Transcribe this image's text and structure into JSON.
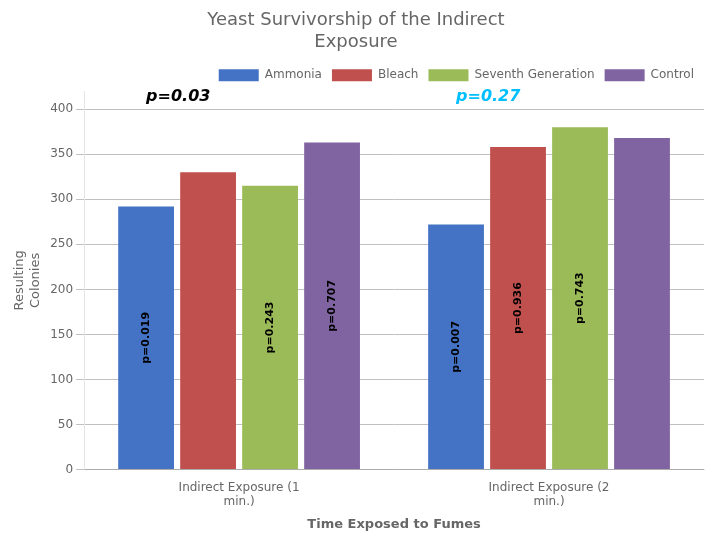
{
  "chart_data": {
    "type": "bar",
    "title": "Yeast Survivorship of the Indirect\nExposure",
    "xlabel": "Time Exposed to Fumes",
    "ylabel": "Resulting\nColonies",
    "categories": [
      "Indirect Exposure (1\nmin.)",
      "Indirect Exposure (2\nmin.)"
    ],
    "series": [
      {
        "name": "Ammonia",
        "color": "#4472C4",
        "values": [
          292,
          272
        ],
        "bar_labels": [
          "p=0.019",
          "p=0.007"
        ]
      },
      {
        "name": "Bleach",
        "color": "#C0504D",
        "values": [
          330,
          358
        ],
        "bar_labels": [
          null,
          "p=0.936"
        ]
      },
      {
        "name": "Seventh Generation",
        "color": "#9BBB59",
        "values": [
          315,
          380
        ],
        "bar_labels": [
          "p=0.243",
          "p=0.743"
        ]
      },
      {
        "name": "Control",
        "color": "#8064A2",
        "values": [
          363,
          368
        ],
        "bar_labels": [
          "p=0.707",
          null
        ]
      }
    ],
    "annotations": [
      {
        "text": "p=0.03",
        "color": "black",
        "category": "Indirect Exposure (1\nmin.)",
        "y": 405
      },
      {
        "text": "p=0.27",
        "color": "#00BFFF",
        "category": "Indirect Exposure (2\nmin.)",
        "y": 405
      }
    ],
    "ylim": [
      0,
      420
    ],
    "yticks": [
      0,
      50,
      100,
      150,
      200,
      250,
      300,
      350,
      400
    ],
    "grid": true,
    "legend": "upper right"
  }
}
